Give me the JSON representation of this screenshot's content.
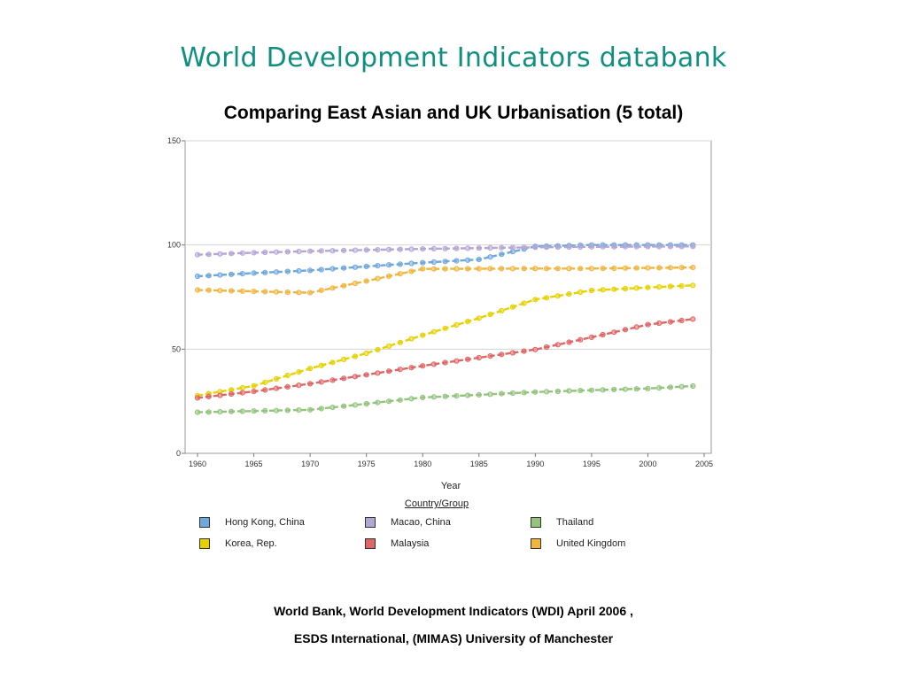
{
  "slide": {
    "title": "World Development Indicators databank",
    "source_line1": "World Bank, World Development Indicators (WDI) April 2006 ,",
    "source_line2": "ESDS International, (MIMAS) University of Manchester"
  },
  "chart_data": {
    "type": "line",
    "title": "Comparing East Asian and UK Urbanisation (5 total)",
    "xlabel": "Year",
    "ylabel": "",
    "xlim": [
      1960,
      2005
    ],
    "ylim": [
      0,
      150
    ],
    "xticks": [
      1960,
      1965,
      1970,
      1975,
      1980,
      1985,
      1990,
      1995,
      2000,
      2005
    ],
    "yticks": [
      0,
      50,
      100,
      150
    ],
    "grid": "horizontal",
    "legend_title": "Country/Group",
    "legend_position": "bottom",
    "series": [
      {
        "name": "Hong Kong, China",
        "color": "#6fa8dc",
        "points": [
          [
            1960,
            85
          ],
          [
            1965,
            86.5
          ],
          [
            1970,
            87.8
          ],
          [
            1975,
            89.7
          ],
          [
            1980,
            91.5
          ],
          [
            1985,
            93
          ],
          [
            1990,
            99.3
          ],
          [
            1995,
            100
          ],
          [
            2000,
            100
          ],
          [
            2004,
            100
          ]
        ]
      },
      {
        "name": "Macao, China",
        "color": "#b4a7d6",
        "points": [
          [
            1960,
            95.3
          ],
          [
            1965,
            96.3
          ],
          [
            1970,
            97
          ],
          [
            1975,
            97.6
          ],
          [
            1980,
            98.1
          ],
          [
            1985,
            98.5
          ],
          [
            1990,
            98.9
          ],
          [
            1995,
            99.1
          ],
          [
            2000,
            99.2
          ],
          [
            2004,
            99.3
          ]
        ]
      },
      {
        "name": "Thailand",
        "color": "#93c47d",
        "points": [
          [
            1960,
            19.7
          ],
          [
            1965,
            20.3
          ],
          [
            1970,
            20.9
          ],
          [
            1975,
            23.8
          ],
          [
            1980,
            26.8
          ],
          [
            1985,
            28.1
          ],
          [
            1990,
            29.4
          ],
          [
            1995,
            30.3
          ],
          [
            2000,
            31.1
          ],
          [
            2004,
            32.3
          ]
        ]
      },
      {
        "name": "Korea, Rep.",
        "color": "#e6d200",
        "points": [
          [
            1960,
            27.7
          ],
          [
            1965,
            32.4
          ],
          [
            1970,
            40.7
          ],
          [
            1975,
            48
          ],
          [
            1980,
            56.7
          ],
          [
            1985,
            64.9
          ],
          [
            1990,
            73.8
          ],
          [
            1995,
            78.2
          ],
          [
            2000,
            79.6
          ],
          [
            2004,
            80.6
          ]
        ]
      },
      {
        "name": "Malaysia",
        "color": "#e06666",
        "points": [
          [
            1960,
            26.6
          ],
          [
            1965,
            29.7
          ],
          [
            1970,
            33.4
          ],
          [
            1975,
            37.7
          ],
          [
            1980,
            42
          ],
          [
            1985,
            45.9
          ],
          [
            1990,
            49.8
          ],
          [
            1995,
            55.7
          ],
          [
            2000,
            61.8
          ],
          [
            2004,
            64.4
          ]
        ]
      },
      {
        "name": "United Kingdom",
        "color": "#f1b540",
        "points": [
          [
            1960,
            78.4
          ],
          [
            1965,
            77.7
          ],
          [
            1970,
            77.1
          ],
          [
            1975,
            82.7
          ],
          [
            1980,
            88.5
          ],
          [
            1985,
            88.6
          ],
          [
            1990,
            88.7
          ],
          [
            1995,
            88.7
          ],
          [
            2000,
            89
          ],
          [
            2004,
            89.2
          ]
        ]
      }
    ]
  }
}
